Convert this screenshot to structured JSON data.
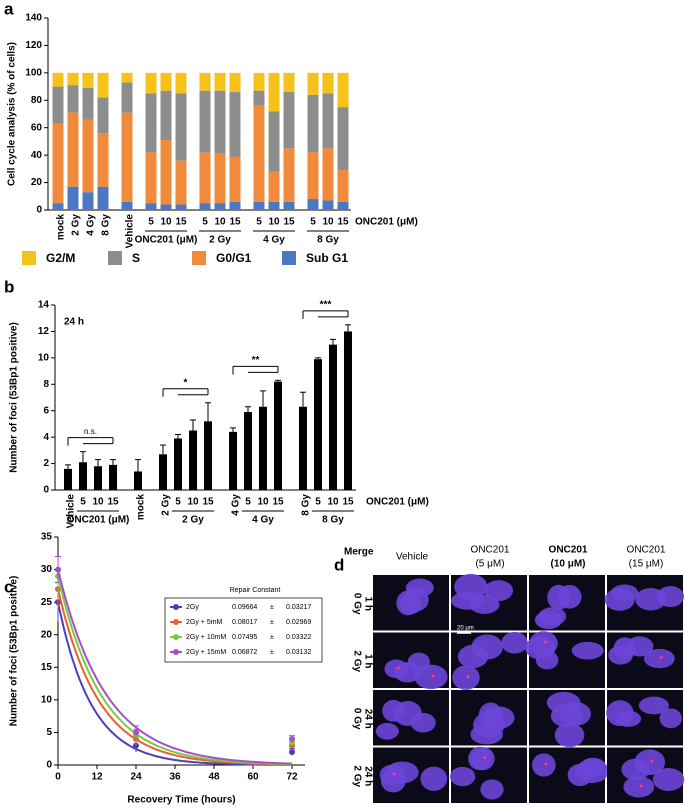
{
  "chart_data": [
    {
      "type": "stacked_bar",
      "panel": "a",
      "ylabel": "Cell cycle analysis (% of cells)",
      "x_label": "ONC201 (μM)",
      "categories": [
        "mock",
        "2 Gy",
        "4 Gy",
        "8 Gy",
        "Vehicle",
        "5",
        "10",
        "15",
        "5",
        "10",
        "15",
        "5",
        "10",
        "15",
        "5",
        "10",
        "15"
      ],
      "groups": [
        {
          "label": "ONC201 (μM)",
          "span": [
            5,
            7
          ]
        },
        {
          "label": "2 Gy",
          "span": [
            8,
            10
          ]
        },
        {
          "label": "4 Gy",
          "span": [
            11,
            13
          ]
        },
        {
          "label": "8 Gy",
          "span": [
            14,
            16
          ]
        }
      ],
      "series": [
        {
          "name": "Sub G1",
          "color": "#4a78c2",
          "values": [
            5,
            17,
            13,
            17,
            6,
            5,
            4,
            4,
            5,
            5,
            6,
            6,
            6,
            6,
            8,
            7,
            6
          ]
        },
        {
          "name": "G0/G1",
          "color": "#f08a3c",
          "values": [
            58,
            54,
            53,
            39,
            65,
            37,
            47,
            32,
            37,
            36,
            33,
            70,
            22,
            39,
            34,
            38,
            23
          ]
        },
        {
          "name": "S",
          "color": "#8d8d8d",
          "values": [
            27,
            20,
            23,
            26,
            22,
            43,
            36,
            49,
            45,
            46,
            47,
            11,
            44,
            41,
            42,
            40,
            46
          ]
        },
        {
          "name": "G2/M",
          "color": "#f5c21b",
          "values": [
            10,
            9,
            11,
            18,
            7,
            15,
            13,
            15,
            13,
            13,
            14,
            13,
            28,
            14,
            16,
            15,
            25
          ]
        }
      ],
      "ylim": [
        0,
        140
      ],
      "yticks": [
        0,
        20,
        40,
        60,
        80,
        100,
        120,
        140
      ]
    },
    {
      "type": "bar",
      "panel": "b",
      "ylabel": "Number of foci (53Bp1 positive)",
      "x_label": "ONC201 (μM)",
      "annotation": "24 h",
      "categories": [
        "Vehicle",
        "5",
        "10",
        "15",
        "mock",
        "2 Gy",
        "5",
        "10",
        "15",
        "4 Gy",
        "5",
        "10",
        "15",
        "8 Gy",
        "5",
        "10",
        "15"
      ],
      "values": [
        1.6,
        2.1,
        1.8,
        1.9,
        1.4,
        2.7,
        3.9,
        4.5,
        5.2,
        4.4,
        5.9,
        6.3,
        8.2,
        6.3,
        9.9,
        11.0,
        12.0
      ],
      "errors": [
        0.3,
        0.8,
        0.5,
        0.4,
        0.9,
        0.7,
        0.3,
        0.8,
        1.4,
        0.3,
        0.4,
        1.2,
        0.1,
        1.1,
        0.1,
        0.4,
        0.5
      ],
      "color": "#000000",
      "groups": [
        {
          "label": "ONC201 (μM)",
          "span": [
            1,
            3
          ]
        },
        {
          "label": "2 Gy",
          "span": [
            6,
            8
          ]
        },
        {
          "label": "4 Gy",
          "span": [
            10,
            12
          ]
        },
        {
          "label": "8 Gy",
          "span": [
            14,
            16
          ]
        }
      ],
      "significance": [
        {
          "label": "n.s.",
          "span": [
            0,
            3
          ]
        },
        {
          "label": "*",
          "span": [
            5,
            8
          ]
        },
        {
          "label": "**",
          "span": [
            9,
            12
          ]
        },
        {
          "label": "***",
          "span": [
            13,
            16
          ]
        }
      ],
      "ylim": [
        0,
        14
      ],
      "yticks": [
        0,
        2,
        4,
        6,
        8,
        10,
        12,
        14
      ]
    },
    {
      "type": "decay",
      "panel": "c",
      "xlabel": "Recovery Time (hours)",
      "ylabel": "Number of foci (53Bp1 positive)",
      "table_header": "Repair Constant",
      "separator": "±",
      "x": [
        0,
        24,
        72
      ],
      "series": [
        {
          "name": "2Gy",
          "color": "#4b3fc0",
          "values": [
            25,
            3,
            2
          ],
          "errors": [
            3,
            1,
            0.5
          ],
          "repair_constant": 0.09664,
          "repair_constant_error": 0.03217
        },
        {
          "name": "2Gy + 5mM",
          "color": "#e8602c",
          "values": [
            27,
            4,
            3
          ],
          "errors": [
            3,
            1,
            0.5
          ],
          "repair_constant": 0.08017,
          "repair_constant_error": 0.02969
        },
        {
          "name": "2Gy + 10mM",
          "color": "#7ac943",
          "values": [
            29,
            4.5,
            3.5
          ],
          "errors": [
            3,
            1,
            0.5
          ],
          "repair_constant": 0.07495,
          "repair_constant_error": 0.03322
        },
        {
          "name": "2Gy + 15mM",
          "color": "#a64fc9",
          "values": [
            30,
            5,
            4
          ],
          "errors": [
            2,
            1,
            0.5
          ],
          "repair_constant": 0.06872,
          "repair_constant_error": 0.03132
        }
      ],
      "xlim": [
        0,
        76
      ],
      "xticks": [
        0,
        12,
        24,
        36,
        48,
        60,
        72
      ],
      "ylim": [
        0,
        35
      ],
      "yticks": [
        0,
        5,
        10,
        15,
        20,
        25,
        30,
        35
      ]
    }
  ],
  "image_grid": {
    "panel": "d",
    "row_header": "Merge",
    "scale_bar": "20 μm",
    "columns": [
      [
        "Vehicle"
      ],
      [
        "ONC201",
        "(5 μM)"
      ],
      [
        "ONC201",
        "(10 μM)"
      ],
      [
        "ONC201",
        "(15 μM)"
      ]
    ],
    "rows": [
      [
        "0 Gy",
        "1 h"
      ],
      [
        "2 Gy",
        "1 h"
      ],
      [
        "0 Gy",
        "24 h"
      ],
      [
        "2 Gy",
        "24 h"
      ]
    ]
  }
}
